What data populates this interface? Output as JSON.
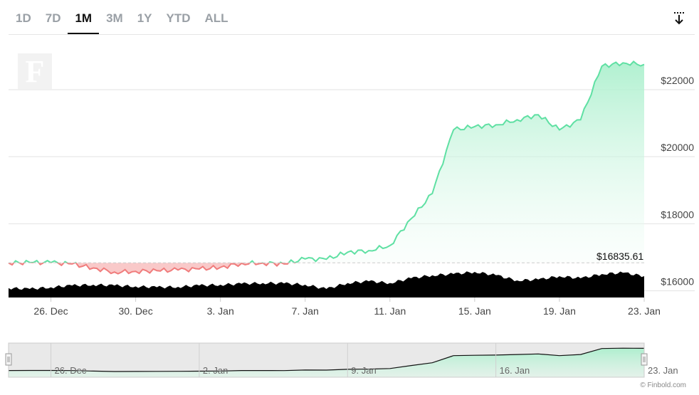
{
  "range_tabs": [
    "1D",
    "7D",
    "1M",
    "3M",
    "1Y",
    "YTD",
    "ALL"
  ],
  "active_tab": "1M",
  "watermark_letter": "F",
  "credit": "© Finbold.com",
  "icons": {
    "download": "download-icon"
  },
  "colors": {
    "up_line": "#5fe0a3",
    "up_fill_top": "#a8efcb",
    "down_line": "#f07c7c",
    "down_fill": "#f9c9c9",
    "volume": "#000000",
    "grid": "#e2e2e2"
  },
  "chart_data": {
    "type": "area",
    "title": "",
    "xlabel": "",
    "ylabel": "",
    "ylim": [
      15800,
      23400
    ],
    "yticks": [
      16000,
      18000,
      20000,
      22000
    ],
    "ytick_labels": [
      "$16000",
      "$18000",
      "$20000",
      "$22000"
    ],
    "x_start": "2022-12-24",
    "xticks": [
      "2022-12-26",
      "2022-12-30",
      "2023-01-03",
      "2023-01-07",
      "2023-01-11",
      "2023-01-15",
      "2023-01-19",
      "2023-01-23"
    ],
    "xtick_labels": [
      "26. Dec",
      "30. Dec",
      "3. Jan",
      "7. Jan",
      "11. Jan",
      "15. Jan",
      "19. Jan",
      "23. Jan"
    ],
    "baseline": 16835.61,
    "baseline_label": "$16835.61",
    "series": [
      {
        "x": [
          "2022-12-24",
          "2022-12-25",
          "2022-12-26",
          "2022-12-27",
          "2022-12-28",
          "2022-12-29",
          "2022-12-30",
          "2022-12-31",
          "2023-01-01",
          "2023-01-02",
          "2023-01-03",
          "2023-01-04",
          "2023-01-05",
          "2023-01-06",
          "2023-01-07",
          "2023-01-08",
          "2023-01-09",
          "2023-01-10",
          "2023-01-11",
          "2023-01-12",
          "2023-01-13",
          "2023-01-14",
          "2023-01-15",
          "2023-01-16",
          "2023-01-17",
          "2023-01-18",
          "2023-01-19",
          "2023-01-20",
          "2023-01-21",
          "2023-01-22",
          "2023-01-23"
        ],
        "values": [
          16830,
          16845,
          16840,
          16800,
          16680,
          16560,
          16580,
          16600,
          16620,
          16650,
          16700,
          16820,
          16830,
          16800,
          16950,
          16940,
          17150,
          17200,
          17350,
          18150,
          18900,
          20800,
          20900,
          20950,
          21100,
          21250,
          20800,
          21100,
          22700,
          22800,
          22750
        ]
      }
    ],
    "volume_note": "volume bars (relative units)",
    "volume": [
      0.22,
      0.2,
      0.24,
      0.28,
      0.3,
      0.28,
      0.26,
      0.24,
      0.25,
      0.28,
      0.3,
      0.32,
      0.34,
      0.33,
      0.3,
      0.2,
      0.34,
      0.38,
      0.34,
      0.45,
      0.52,
      0.55,
      0.6,
      0.52,
      0.4,
      0.42,
      0.5,
      0.45,
      0.55,
      0.58,
      0.5
    ],
    "navigator": {
      "xtick_labels": [
        "26. Dec",
        "2. Jan",
        "9. Jan",
        "16. Jan",
        "23. Jan"
      ],
      "xticks": [
        "2022-12-26",
        "2023-01-02",
        "2023-01-09",
        "2023-01-16",
        "2023-01-23"
      ]
    }
  }
}
